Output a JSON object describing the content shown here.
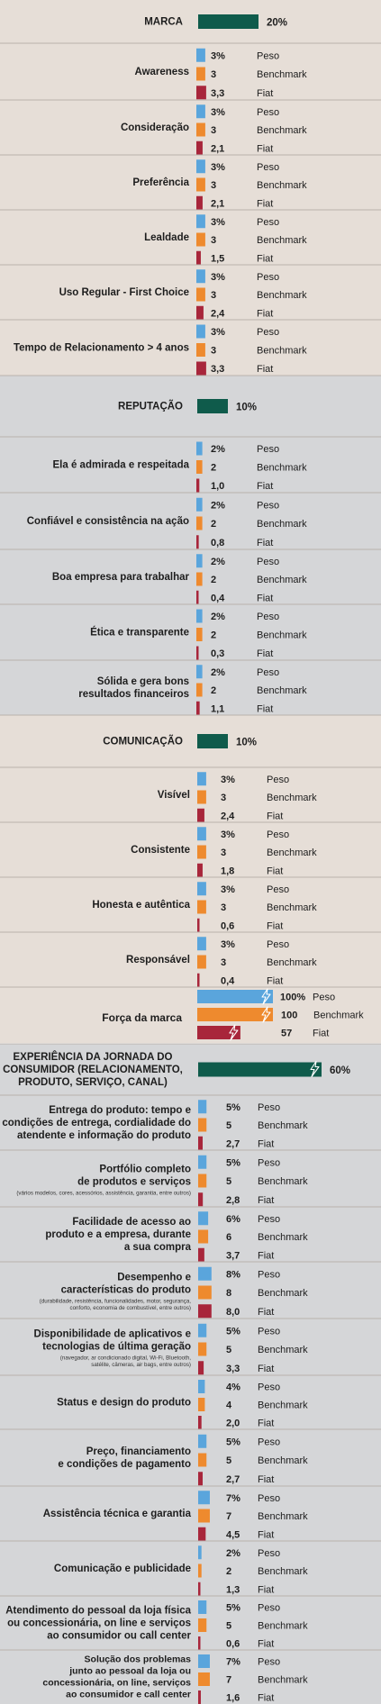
{
  "chart_data": {
    "type": "bar",
    "legend": [
      "Peso",
      "Benchmark",
      "Fiat"
    ],
    "colors": {
      "peso": "#5aa5dc",
      "benchmark": "#ee8a2e",
      "fiat": "#a8263b",
      "section": "#0f5b4b",
      "bg_light": "#e6ded7",
      "bg_gray": "#d5d6d8"
    },
    "sections": [
      {
        "title": [
          "MARCA"
        ],
        "weight": 20,
        "weight_label": "20%",
        "rows": [
          {
            "label": [
              "Awareness"
            ],
            "sub": [],
            "peso": 3,
            "benchmark": 3,
            "fiat": 3.3,
            "peso_label": "3%",
            "benchmark_label": "3",
            "fiat_label": "3,3"
          },
          {
            "label": [
              "Consideração"
            ],
            "sub": [],
            "peso": 3,
            "benchmark": 3,
            "fiat": 2.1,
            "peso_label": "3%",
            "benchmark_label": "3",
            "fiat_label": "2,1"
          },
          {
            "label": [
              "Preferência"
            ],
            "sub": [],
            "peso": 3,
            "benchmark": 3,
            "fiat": 2.1,
            "peso_label": "3%",
            "benchmark_label": "3",
            "fiat_label": "2,1"
          },
          {
            "label": [
              "Lealdade"
            ],
            "sub": [],
            "peso": 3,
            "benchmark": 3,
            "fiat": 1.5,
            "peso_label": "3%",
            "benchmark_label": "3",
            "fiat_label": "1,5"
          },
          {
            "label": [
              "Uso Regular - First Choice"
            ],
            "sub": [],
            "peso": 3,
            "benchmark": 3,
            "fiat": 2.4,
            "peso_label": "3%",
            "benchmark_label": "3",
            "fiat_label": "2,4"
          },
          {
            "label": [
              "Tempo de Relacionamento > 4 anos"
            ],
            "sub": [],
            "peso": 3,
            "benchmark": 3,
            "fiat": 3.3,
            "peso_label": "3%",
            "benchmark_label": "3",
            "fiat_label": "3,3"
          }
        ]
      },
      {
        "title": [
          "REPUTAÇÃO"
        ],
        "weight": 10,
        "weight_label": "10%",
        "rows": [
          {
            "label": [
              "Ela é admirada e respeitada"
            ],
            "sub": [],
            "peso": 2,
            "benchmark": 2,
            "fiat": 1.0,
            "peso_label": "2%",
            "benchmark_label": "2",
            "fiat_label": "1,0"
          },
          {
            "label": [
              "Confiável e consistência na ação"
            ],
            "sub": [],
            "peso": 2,
            "benchmark": 2,
            "fiat": 0.8,
            "peso_label": "2%",
            "benchmark_label": "2",
            "fiat_label": "0,8"
          },
          {
            "label": [
              "Boa empresa para trabalhar"
            ],
            "sub": [],
            "peso": 2,
            "benchmark": 2,
            "fiat": 0.4,
            "peso_label": "2%",
            "benchmark_label": "2",
            "fiat_label": "0,4"
          },
          {
            "label": [
              "Ética e transparente"
            ],
            "sub": [],
            "peso": 2,
            "benchmark": 2,
            "fiat": 0.3,
            "peso_label": "2%",
            "benchmark_label": "2",
            "fiat_label": "0,3"
          },
          {
            "label": [
              "Sólida e gera bons",
              "resultados financeiros"
            ],
            "sub": [],
            "peso": 2,
            "benchmark": 2,
            "fiat": 1.1,
            "peso_label": "2%",
            "benchmark_label": "2",
            "fiat_label": "1,1"
          }
        ]
      },
      {
        "title": [
          "COMUNICAÇÃO"
        ],
        "weight": 10,
        "weight_label": "10%",
        "rows": [
          {
            "label": [
              "Visível"
            ],
            "sub": [],
            "peso": 3,
            "benchmark": 3,
            "fiat": 2.4,
            "peso_label": "3%",
            "benchmark_label": "3",
            "fiat_label": "2,4"
          },
          {
            "label": [
              "Consistente"
            ],
            "sub": [],
            "peso": 3,
            "benchmark": 3,
            "fiat": 1.8,
            "peso_label": "3%",
            "benchmark_label": "3",
            "fiat_label": "1,8"
          },
          {
            "label": [
              "Honesta e autêntica"
            ],
            "sub": [],
            "peso": 3,
            "benchmark": 3,
            "fiat": 0.6,
            "peso_label": "3%",
            "benchmark_label": "3",
            "fiat_label": "0,6"
          },
          {
            "label": [
              "Responsável"
            ],
            "sub": [],
            "peso": 3,
            "benchmark": 3,
            "fiat": 0.4,
            "peso_label": "3%",
            "benchmark_label": "3",
            "fiat_label": "0,4"
          }
        ]
      },
      {
        "title": [
          "Força da marca"
        ],
        "is_total": true,
        "total": {
          "peso": 100,
          "benchmark": 100,
          "fiat": 57,
          "peso_label": "100%",
          "benchmark_label": "100",
          "fiat_label": "57"
        }
      },
      {
        "title": [
          "EXPERIÊNCIA DA JORNADA DO",
          "CONSUMIDOR (RELACIONAMENTO,",
          "PRODUTO, SERVIÇO, CANAL)"
        ],
        "weight": 60,
        "weight_label": "60%",
        "rows": [
          {
            "label": [
              "Entrega do produto: tempo e",
              "condições de entrega, cordialidade do",
              "atendente e informação do produto"
            ],
            "sub": [],
            "peso": 5,
            "benchmark": 5,
            "fiat": 2.7,
            "peso_label": "5%",
            "benchmark_label": "5",
            "fiat_label": "2,7"
          },
          {
            "label": [
              "Portfólio completo",
              "de produtos e serviços"
            ],
            "sub": [
              "(vários modelos, cores, acessórios, assistência, garantia, entre outros)"
            ],
            "peso": 5,
            "benchmark": 5,
            "fiat": 2.8,
            "peso_label": "5%",
            "benchmark_label": "5",
            "fiat_label": "2,8"
          },
          {
            "label": [
              "Facilidade de acesso ao",
              "produto e a empresa, durante",
              "a sua compra"
            ],
            "sub": [],
            "peso": 6,
            "benchmark": 6,
            "fiat": 3.7,
            "peso_label": "6%",
            "benchmark_label": "6",
            "fiat_label": "3,7"
          },
          {
            "label": [
              "Desempenho e",
              "características do produto"
            ],
            "sub": [
              "(durabilidade, resistência, funcionalidades, motor, segurança,",
              "conforto, economia de combustível, entre outros)"
            ],
            "peso": 8,
            "benchmark": 8,
            "fiat": 8.0,
            "peso_label": "8%",
            "benchmark_label": "8",
            "fiat_label": "8,0"
          },
          {
            "label": [
              "Disponibilidade de aplicativos e",
              "tecnologias de última geração"
            ],
            "sub": [
              "(navegador, ar condicionado digital, Wi-Fi, Bluetooth,",
              "satélite, câmeras, air bags, entre outros)"
            ],
            "peso": 5,
            "benchmark": 5,
            "fiat": 3.3,
            "peso_label": "5%",
            "benchmark_label": "5",
            "fiat_label": "3,3"
          },
          {
            "label": [
              "Status e design do produto"
            ],
            "sub": [],
            "peso": 4,
            "benchmark": 4,
            "fiat": 2.0,
            "peso_label": "4%",
            "benchmark_label": "4",
            "fiat_label": "2,0"
          },
          {
            "label": [
              "Preço, financiamento",
              "e condições de pagamento"
            ],
            "sub": [],
            "peso": 5,
            "benchmark": 5,
            "fiat": 2.7,
            "peso_label": "5%",
            "benchmark_label": "5",
            "fiat_label": "2,7"
          },
          {
            "label": [
              "Assistência técnica e garantia"
            ],
            "sub": [],
            "peso": 7,
            "benchmark": 7,
            "fiat": 4.5,
            "peso_label": "7%",
            "benchmark_label": "7",
            "fiat_label": "4,5"
          },
          {
            "label": [
              "Comunicação e publicidade"
            ],
            "sub": [],
            "peso": 2,
            "benchmark": 2,
            "fiat": 1.3,
            "peso_label": "2%",
            "benchmark_label": "2",
            "fiat_label": "1,3"
          },
          {
            "label": [
              "Atendimento do pessoal da loja física",
              "ou concessionária, on line e serviços",
              "ao consumidor ou call center"
            ],
            "sub": [],
            "peso": 5,
            "benchmark": 5,
            "fiat": 0.6,
            "peso_label": "5%",
            "benchmark_label": "5",
            "fiat_label": "0,6"
          },
          {
            "label": [
              "Solução dos problemas",
              "junto ao pessoal da loja ou",
              "concessionária, on line, serviços",
              "ao consumidor e call center"
            ],
            "sub": [],
            "peso": 7,
            "benchmark": 7,
            "fiat": 1.6,
            "peso_label": "7%",
            "benchmark_label": "7",
            "fiat_label": "1,6"
          }
        ]
      }
    ]
  }
}
